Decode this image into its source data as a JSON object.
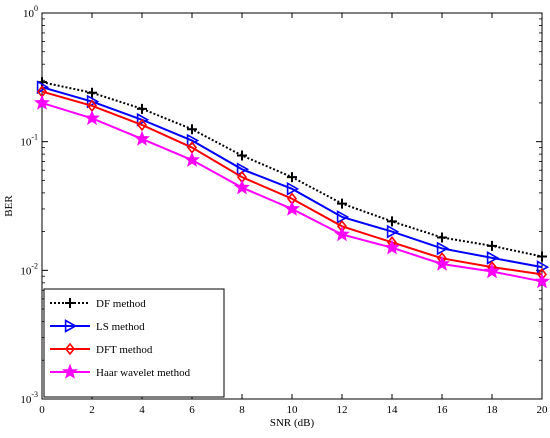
{
  "chart_data": {
    "type": "line",
    "xlabel": "SNR (dB)",
    "ylabel": "BER",
    "yscale": "log",
    "xlim": [
      0,
      20
    ],
    "ylim": [
      0.001,
      1
    ],
    "x_ticks": [
      "0",
      "2",
      "4",
      "6",
      "8",
      "10",
      "12",
      "14",
      "16",
      "18",
      "20"
    ],
    "y_ticks": [
      {
        "base": "10",
        "exp": "0"
      },
      {
        "base": "10",
        "exp": "-1"
      },
      {
        "base": "10",
        "exp": "-2"
      },
      {
        "base": "10",
        "exp": "-3"
      }
    ],
    "legend_position": "bottom-left",
    "x": [
      0,
      2,
      4,
      6,
      8,
      10,
      12,
      14,
      16,
      18,
      20
    ],
    "series": [
      {
        "name": "DF method",
        "color": "#000000",
        "marker": "plus",
        "dashed": true,
        "values": [
          0.29,
          0.24,
          0.18,
          0.125,
          0.078,
          0.053,
          0.033,
          0.024,
          0.018,
          0.0155,
          0.0128
        ]
      },
      {
        "name": "LS method",
        "color": "#0000ff",
        "marker": "triangle-right",
        "dashed": false,
        "values": [
          0.265,
          0.205,
          0.148,
          0.102,
          0.061,
          0.043,
          0.026,
          0.02,
          0.0148,
          0.0125,
          0.0106
        ]
      },
      {
        "name": "DFT method",
        "color": "#ff0000",
        "marker": "diamond",
        "dashed": false,
        "values": [
          0.245,
          0.19,
          0.135,
          0.09,
          0.053,
          0.036,
          0.022,
          0.0165,
          0.0124,
          0.0106,
          0.0093
        ]
      },
      {
        "name": "Haar wavelet method",
        "color": "#ff00ff",
        "marker": "star",
        "dashed": false,
        "values": [
          0.2,
          0.152,
          0.105,
          0.072,
          0.044,
          0.03,
          0.019,
          0.015,
          0.0112,
          0.0098,
          0.0082
        ]
      }
    ]
  }
}
